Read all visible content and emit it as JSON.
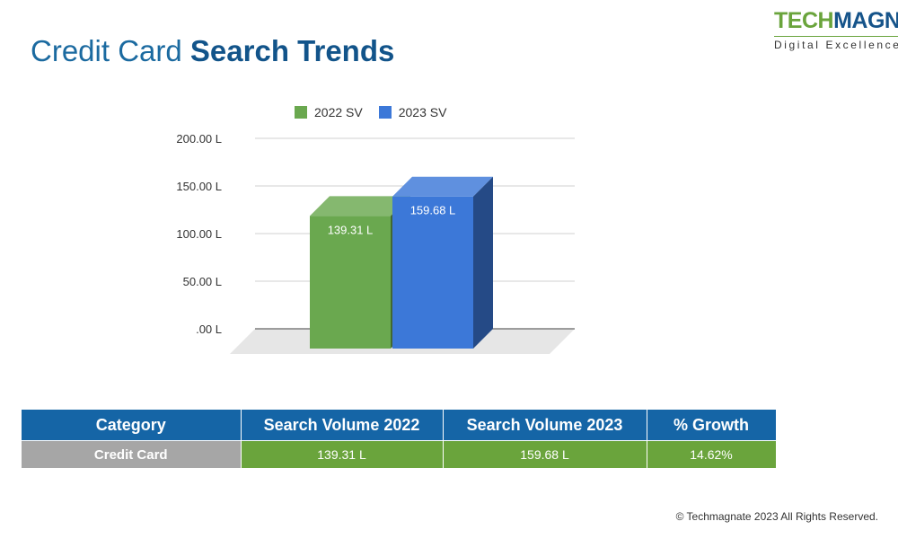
{
  "title": {
    "regular": "Credit Card",
    "bold": "Search Trends"
  },
  "logo": {
    "part1": "TECH",
    "part2": "MAGNATE",
    "tagline": "Digital Excellence"
  },
  "chart_data": {
    "type": "bar",
    "categories": [
      "Credit Card"
    ],
    "series": [
      {
        "name": "2022 SV",
        "values": [
          139.31
        ],
        "label": "139.31 L",
        "color": "#6aa84f"
      },
      {
        "name": "2023 SV",
        "values": [
          159.68
        ],
        "label": "159.68 L",
        "color": "#3c78d8"
      }
    ],
    "ylim": [
      0,
      200
    ],
    "yticks": [
      0,
      50,
      100,
      150,
      200
    ],
    "ytick_labels": [
      ".00 L",
      "50.00 L",
      "100.00 L",
      "150.00 L",
      "200.00 L"
    ],
    "grid": true,
    "legend_position": "top",
    "style": "3d"
  },
  "table": {
    "headers": [
      "Category",
      "Search Volume 2022",
      "Search Volume 2023",
      "% Growth"
    ],
    "rows": [
      [
        "Credit Card",
        "139.31 L",
        "159.68 L",
        "14.62%"
      ]
    ]
  },
  "footer": "© Techmagnate 2023 All Rights Reserved."
}
